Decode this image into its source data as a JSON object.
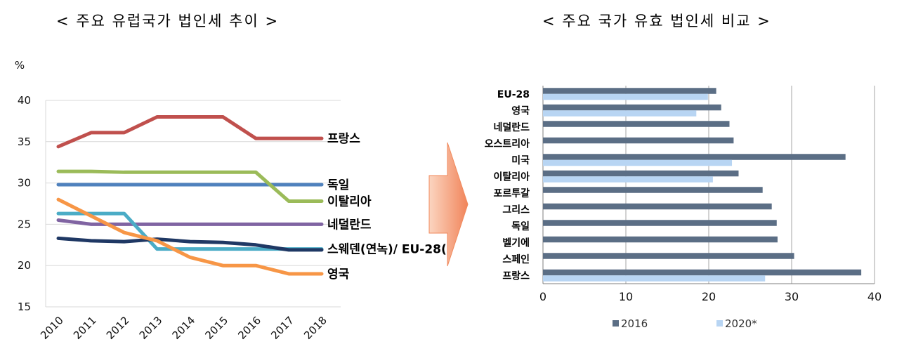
{
  "left_title": "< 주요 유럽국가 법인세 추이 >",
  "right_title": "< 주요 국가 유효 법인세 비교 >",
  "chart_data": [
    {
      "type": "line",
      "ylabel": "%",
      "ylim": [
        15,
        40
      ],
      "yticks": [
        "15",
        "20",
        "25",
        "30",
        "35",
        "40"
      ],
      "x": [
        "2010",
        "2011",
        "2012",
        "2013",
        "2014",
        "2015",
        "2016",
        "2017",
        "2018"
      ],
      "grid": true,
      "series": [
        {
          "name": "프랑스",
          "color": "#c0504d",
          "values": [
            34.4,
            36.1,
            36.1,
            38.0,
            38.0,
            38.0,
            35.4,
            35.4,
            35.4
          ]
        },
        {
          "name": "독일",
          "color": "#4f81bd",
          "values": [
            29.8,
            29.8,
            29.8,
            29.8,
            29.8,
            29.8,
            29.8,
            29.8,
            29.8
          ]
        },
        {
          "name": "이탈리아",
          "color": "#9bbb59",
          "values": [
            31.4,
            31.4,
            31.3,
            31.3,
            31.3,
            31.3,
            31.3,
            27.8,
            27.8
          ]
        },
        {
          "name": "네덜란드",
          "color": "#8064a2",
          "values": [
            25.5,
            25.0,
            25.0,
            25.0,
            25.0,
            25.0,
            25.0,
            25.0,
            25.0
          ]
        },
        {
          "name": "스웨덴(연녹)/ EU-28(",
          "color": "#4bacc6",
          "values": [
            26.3,
            26.3,
            26.3,
            22.0,
            22.0,
            22.0,
            22.0,
            22.0,
            22.0
          ]
        },
        {
          "name": "",
          "color": "#1f3864",
          "values": [
            23.3,
            23.0,
            22.9,
            23.2,
            22.9,
            22.8,
            22.5,
            21.9,
            21.9
          ]
        },
        {
          "name": "영국",
          "color": "#f79646",
          "values": [
            28.0,
            26.0,
            24.0,
            23.0,
            21.0,
            20.0,
            20.0,
            19.0,
            19.0
          ]
        }
      ]
    },
    {
      "type": "bar",
      "orientation": "horizontal",
      "categories": [
        "EU-28",
        "영국",
        "네덜란드",
        "오스트리아",
        "미국",
        "이탈리아",
        "포르투갈",
        "그리스",
        "독일",
        "벨기에",
        "스페인",
        "프랑스"
      ],
      "xlim": [
        0,
        40
      ],
      "xticks": [
        "0",
        "10",
        "20",
        "30",
        "40"
      ],
      "grid": true,
      "legend": "bottom",
      "series": [
        {
          "name": "2016",
          "color": "#5b6e85",
          "values": [
            20.9,
            21.5,
            22.5,
            23.0,
            36.5,
            23.6,
            26.5,
            27.6,
            28.2,
            28.3,
            30.3,
            38.4
          ]
        },
        {
          "name": "2020*",
          "color": "#b8d5f3",
          "values": [
            19.9,
            18.5,
            null,
            null,
            22.8,
            20.5,
            null,
            null,
            null,
            null,
            null,
            26.8
          ]
        }
      ]
    }
  ]
}
